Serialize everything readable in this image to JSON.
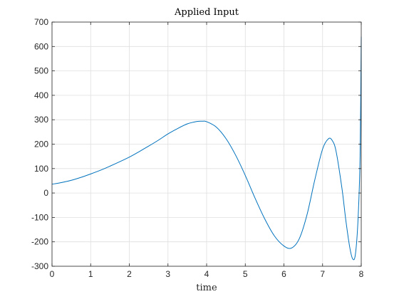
{
  "chart_data": {
    "type": "line",
    "title": "Applied Input",
    "xlabel": "time",
    "ylabel": "",
    "xlim": [
      0,
      8
    ],
    "ylim": [
      -300,
      700
    ],
    "xticks": [
      0,
      1,
      2,
      3,
      4,
      5,
      6,
      7,
      8
    ],
    "yticks": [
      -300,
      -200,
      -100,
      0,
      100,
      200,
      300,
      400,
      500,
      600,
      700
    ],
    "xtick_labels": [
      "0",
      "1",
      "2",
      "3",
      "4",
      "5",
      "6",
      "7",
      "8"
    ],
    "ytick_labels": [
      "-300",
      "-200",
      "-100",
      "0",
      "100",
      "200",
      "300",
      "400",
      "500",
      "600",
      "700"
    ],
    "grid": true,
    "series": [
      {
        "color": "#0072BD",
        "x": [
          0,
          0.25,
          0.5,
          0.75,
          1.0,
          1.25,
          1.5,
          1.75,
          2.0,
          2.25,
          2.5,
          2.75,
          3.0,
          3.25,
          3.5,
          3.75,
          3.9,
          4.0,
          4.25,
          4.5,
          4.75,
          5.0,
          5.25,
          5.5,
          5.75,
          6.0,
          6.2,
          6.4,
          6.6,
          6.8,
          7.0,
          7.15,
          7.25,
          7.35,
          7.5,
          7.6,
          7.7,
          7.78,
          7.85,
          7.92,
          7.97,
          8.0
        ],
        "y": [
          36,
          43,
          52,
          64,
          78,
          93,
          110,
          128,
          147,
          169,
          192,
          216,
          242,
          264,
          283,
          293,
          294,
          292,
          270,
          223,
          155,
          72,
          -20,
          -105,
          -175,
          -217,
          -225,
          -186,
          -87,
          55,
          180,
          222,
          215,
          170,
          20,
          -110,
          -220,
          -270,
          -250,
          -100,
          150,
          640
        ]
      }
    ]
  }
}
